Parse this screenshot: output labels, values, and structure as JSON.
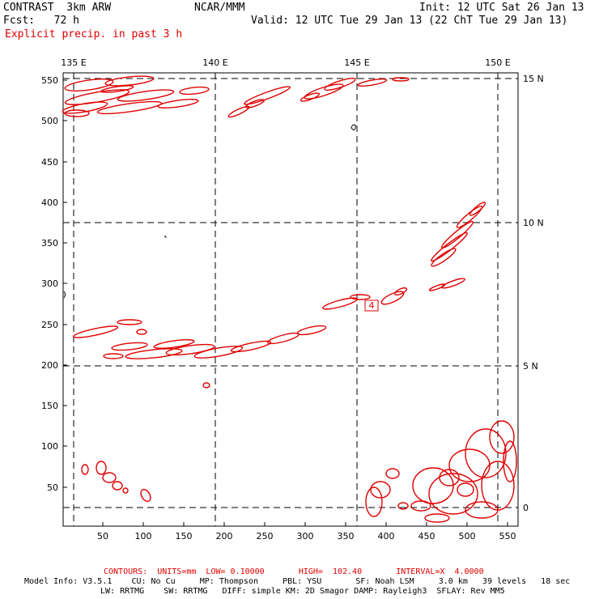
{
  "header": {
    "left_line1": "CONTRAST  3km ARW",
    "left_line2": "Fcst:   72 h",
    "center": "NCAR/MMM",
    "init": "Init: 12 UTC Sat 26 Jan 13",
    "valid": "Valid: 12 UTC Tue 29 Jan 13 (22 ChT Tue 29 Jan 13)",
    "field": "Explicit precip. in past 3 h"
  },
  "map": {
    "lon_labels": [
      "135 E",
      "140 E",
      "145 E",
      "150 E"
    ],
    "lat_labels": [
      "15 N",
      "10 N",
      "5 N",
      "0"
    ],
    "x_ticks": [
      "50",
      "100",
      "150",
      "200",
      "250",
      "300",
      "350",
      "400",
      "450",
      "500",
      "550"
    ],
    "y_ticks": [
      "50",
      "100",
      "150",
      "200",
      "250",
      "300",
      "350",
      "400",
      "450",
      "500",
      "550"
    ],
    "contour_label": "4",
    "contour_color": "#e00000"
  },
  "footer": {
    "contours": "CONTOURS:  UNITS=mm  LOW= 0.10000       HIGH=  102.40       INTERVAL=X  4.0000",
    "model_line1": "Model Info: V3.5.1    CU: No Cu     MP: Thompson     PBL: YSU       SF: Noah LSM     3.0 km   39 levels   18 sec",
    "model_line2": "LW: RRTMG    SW: RRTMG   DIFF: simple KM: 2D Smagor DAMP: Rayleigh3  SFLAY: Rev MM5"
  }
}
